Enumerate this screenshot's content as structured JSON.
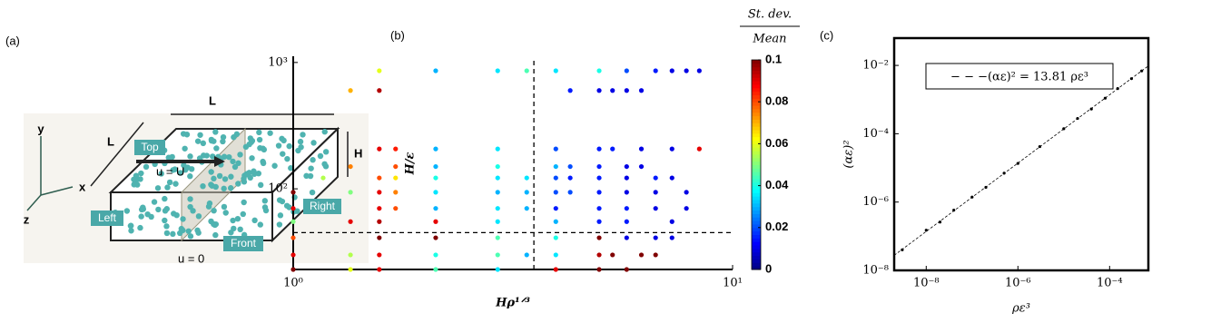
{
  "diagram": {
    "panel_label": "(a)",
    "axis_y": "y",
    "axis_x": "x",
    "axis_z": "z",
    "length_top": "L",
    "length_side": "L",
    "height": "H",
    "top": "Top",
    "left": "Left",
    "right": "Right",
    "front": "Front",
    "velocity_top": "u = U",
    "velocity_bottom": "u = 0"
  },
  "chart_data": [
    {
      "type": "scatter",
      "panel_label": "(b)",
      "x_label": "Hρ¹ᐟ³",
      "y_label": "H/ε",
      "log_x": true,
      "log_y": true,
      "xlim": [
        1,
        10
      ],
      "ylim": [
        23,
        1120
      ],
      "xticks": [
        {
          "value": 1,
          "label": "10⁰"
        },
        {
          "value": 10,
          "label": "10¹"
        }
      ],
      "yticks": [
        {
          "value": 100,
          "label": "10²"
        },
        {
          "value": 1000,
          "label": "10³"
        }
      ],
      "vlines": [
        3.53
      ],
      "hlines": [
        45
      ],
      "colormap": "jet",
      "clim": [
        0,
        0.1
      ],
      "cticks": [
        0,
        0.02,
        0.04,
        0.06,
        0.08,
        0.1
      ],
      "colorbar_label": {
        "numerator": "St. dev.",
        "denominator": "Mean"
      },
      "x": [
        1.57,
        2.11,
        2.92,
        3.4,
        3.96,
        4.97,
        5.74,
        6.68,
        7.28,
        7.85,
        8.4,
        1.35,
        1.57,
        4.27,
        4.97,
        5.33,
        5.74,
        6.2,
        1.57,
        1.71,
        2.11,
        2.92,
        3.96,
        4.97,
        5.33,
        6.2,
        7.28,
        8.4,
        1.35,
        1.71,
        2.11,
        2.92,
        3.96,
        4.27,
        4.97,
        5.74,
        6.2,
        1.17,
        1.57,
        1.71,
        2.11,
        2.92,
        3.4,
        3.96,
        4.27,
        4.97,
        5.74,
        6.68,
        7.28,
        1,
        1.35,
        1.57,
        1.71,
        2.11,
        2.92,
        3.4,
        3.96,
        4.27,
        4.97,
        5.74,
        6.68,
        7.85,
        1,
        1.57,
        1.71,
        2.11,
        2.92,
        3.4,
        3.96,
        4.97,
        5.74,
        6.68,
        7.85,
        1,
        1.35,
        1.57,
        2.11,
        2.92,
        3.96,
        4.97,
        5.74,
        7.28,
        1,
        1.57,
        2.11,
        2.92,
        3.96,
        4.97,
        5.74,
        6.68,
        7.28,
        1,
        1.35,
        1.57,
        2.11,
        2.92,
        3.4,
        3.96,
        4.97,
        5.33,
        6.2,
        6.68,
        1,
        1.35,
        1.57,
        2.11,
        2.92,
        3.96,
        4.97,
        5.74
      ],
      "values": [
        860,
        860,
        860,
        860,
        860,
        860,
        860,
        860,
        860,
        860,
        860,
        600,
        600,
        600,
        600,
        600,
        600,
        600,
        207,
        207,
        207,
        207,
        207,
        207,
        207,
        207,
        207,
        207,
        150,
        150,
        150,
        150,
        150,
        150,
        150,
        150,
        150,
        122,
        122,
        122,
        122,
        122,
        122,
        122,
        122,
        122,
        122,
        122,
        122,
        94,
        94,
        94,
        94,
        94,
        94,
        94,
        94,
        94,
        94,
        94,
        94,
        94,
        70,
        70,
        70,
        70,
        70,
        70,
        70,
        70,
        70,
        70,
        70,
        55,
        55,
        55,
        55,
        55,
        55,
        55,
        55,
        55,
        41,
        41,
        41,
        41,
        41,
        41,
        41,
        41,
        41,
        30,
        30,
        30,
        30,
        30,
        30,
        30,
        30,
        30,
        30,
        30,
        23,
        23,
        23,
        23,
        23,
        23,
        23,
        23
      ],
      "color_values": [
        0.06,
        0.03,
        0.035,
        0.045,
        0.035,
        0.04,
        0.02,
        0.015,
        0.01,
        0.01,
        0.01,
        0.07,
        0.095,
        0.015,
        0.01,
        0.01,
        0.01,
        0.01,
        0.09,
        0.085,
        0.03,
        0.035,
        0.02,
        0.015,
        0.015,
        0.01,
        0.01,
        0.09,
        0.075,
        0.08,
        0.03,
        0.04,
        0.03,
        0.02,
        0.015,
        0.01,
        0.01,
        0.055,
        0.08,
        0.065,
        0.04,
        0.035,
        0.035,
        0.02,
        0.015,
        0.015,
        0.01,
        0.015,
        0.01,
        0.1,
        0.05,
        0.09,
        0.075,
        0.035,
        0.03,
        0.03,
        0.02,
        0.02,
        0.015,
        0.01,
        0.01,
        0.01,
        0.09,
        0.09,
        0.08,
        0.03,
        0.035,
        0.03,
        0.015,
        0.015,
        0.015,
        0.01,
        0.01,
        0.05,
        0.09,
        0.095,
        0.09,
        0.035,
        0.03,
        0.015,
        0.015,
        0.01,
        0.08,
        0.1,
        0.1,
        0.045,
        0.04,
        0.1,
        0.01,
        0.01,
        0.01,
        0.09,
        0.055,
        0.09,
        0.04,
        0.045,
        0.03,
        0.035,
        0.095,
        0.1,
        0.1,
        0.1,
        0.1,
        0.06,
        0.09,
        0.045,
        0.035,
        0.09,
        0.1,
        0.1
      ]
    },
    {
      "type": "scatter",
      "panel_label": "(c)",
      "x_label": "ρε³",
      "y_label": "(αε)²",
      "log_x": true,
      "log_y": true,
      "xlim": [
        2e-09,
        0.0007
      ],
      "ylim": [
        1e-08,
        0.063
      ],
      "xticks": [
        {
          "value": 1e-08,
          "label": "10⁻⁸"
        },
        {
          "value": 1e-06,
          "label": "10⁻⁶"
        },
        {
          "value": 0.0001,
          "label": "10⁻⁴"
        }
      ],
      "yticks": [
        {
          "value": 1e-08,
          "label": "10⁻⁸"
        },
        {
          "value": 1e-06,
          "label": "10⁻⁶"
        },
        {
          "value": 0.0001,
          "label": "10⁻⁴"
        },
        {
          "value": 0.01,
          "label": "10⁻²"
        }
      ],
      "color": "#000000",
      "fit": {
        "label": "− − −(αε)² = 13.81 ρε³",
        "coefficient": 13.81
      },
      "x": [
        3e-09,
        1e-08,
        2e-08,
        4e-08,
        1e-07,
        2e-07,
        5e-07,
        1e-06,
        3e-06,
        1e-05,
        2e-05,
        4e-05,
        8e-05,
        0.00015,
        0.0003,
        0.0005
      ],
      "values": [
        4e-08,
        1.5e-07,
        2.6e-07,
        5.8e-07,
        1.4e-06,
        2.7e-06,
        7e-06,
        1.35e-05,
        4.2e-05,
        0.00014,
        0.00028,
        0.00053,
        0.0011,
        0.0021,
        0.0041,
        0.0069
      ]
    }
  ]
}
